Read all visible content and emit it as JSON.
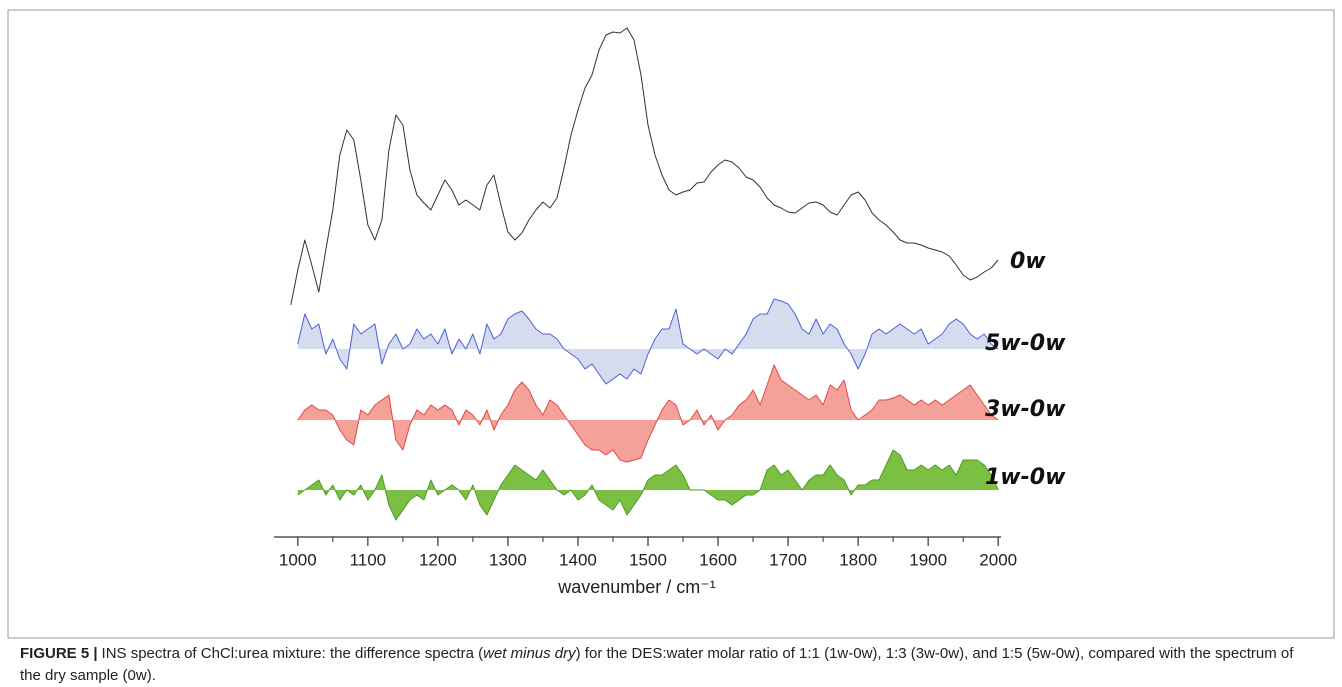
{
  "chart_data": {
    "type": "area",
    "xlabel": "wavenumber / cm⁻¹",
    "xlim": [
      966,
      2004
    ],
    "xticks": [
      1000,
      1100,
      1200,
      1300,
      1400,
      1500,
      1600,
      1700,
      1800,
      1900,
      2000
    ],
    "xminorticks": [
      1050,
      1150,
      1250,
      1350,
      1450,
      1550,
      1650,
      1750,
      1850,
      1950
    ],
    "x": [
      990,
      1000,
      1010,
      1020,
      1030,
      1040,
      1050,
      1060,
      1070,
      1080,
      1090,
      1100,
      1110,
      1120,
      1130,
      1140,
      1150,
      1160,
      1170,
      1180,
      1190,
      1200,
      1210,
      1220,
      1230,
      1240,
      1250,
      1260,
      1270,
      1280,
      1290,
      1300,
      1310,
      1320,
      1330,
      1340,
      1350,
      1360,
      1370,
      1380,
      1390,
      1400,
      1410,
      1420,
      1430,
      1440,
      1450,
      1460,
      1470,
      1480,
      1490,
      1500,
      1510,
      1520,
      1530,
      1540,
      1550,
      1560,
      1570,
      1580,
      1590,
      1600,
      1610,
      1620,
      1630,
      1640,
      1650,
      1660,
      1670,
      1680,
      1690,
      1700,
      1710,
      1720,
      1730,
      1740,
      1750,
      1760,
      1770,
      1780,
      1790,
      1800,
      1810,
      1820,
      1830,
      1840,
      1850,
      1860,
      1870,
      1880,
      1890,
      1900,
      1910,
      1920,
      1930,
      1940,
      1950,
      1960,
      1970,
      1980,
      1990,
      2000
    ],
    "series": [
      {
        "name": "0w",
        "color": "#333333",
        "values": [
          35,
          70,
          100,
          75,
          48,
          90,
          130,
          185,
          210,
          200,
          160,
          115,
          100,
          120,
          190,
          225,
          215,
          170,
          145,
          137,
          130,
          145,
          160,
          150,
          135,
          140,
          135,
          130,
          155,
          165,
          135,
          108,
          100,
          107,
          120,
          130,
          138,
          132,
          142,
          172,
          205,
          230,
          252,
          265,
          290,
          305,
          308,
          307,
          312,
          300,
          265,
          215,
          185,
          165,
          150,
          145,
          148,
          150,
          157,
          158,
          168,
          175,
          180,
          178,
          172,
          163,
          160,
          153,
          142,
          135,
          132,
          128,
          127,
          132,
          137,
          138,
          135,
          128,
          125,
          135,
          145,
          148,
          140,
          127,
          120,
          115,
          108,
          100,
          97,
          97,
          95,
          92,
          90,
          88,
          84,
          75,
          65,
          60,
          63,
          68,
          72,
          80
        ]
      },
      {
        "name": "5w-0w",
        "color": "#4d5fe0",
        "fill": "#d5dcee",
        "values": [
          null,
          5,
          35,
          20,
          25,
          -5,
          10,
          -10,
          -20,
          25,
          15,
          20,
          25,
          -15,
          5,
          15,
          0,
          5,
          20,
          10,
          15,
          5,
          20,
          -5,
          10,
          0,
          15,
          -5,
          25,
          10,
          15,
          30,
          35,
          38,
          30,
          20,
          15,
          15,
          10,
          0,
          -5,
          -10,
          -20,
          -15,
          -25,
          -35,
          -30,
          -25,
          -30,
          -20,
          -25,
          -5,
          10,
          20,
          20,
          40,
          5,
          0,
          -5,
          0,
          -5,
          -10,
          0,
          -5,
          5,
          15,
          30,
          35,
          35,
          50,
          48,
          45,
          35,
          20,
          15,
          30,
          15,
          25,
          20,
          5,
          -5,
          -20,
          -5,
          15,
          20,
          15,
          20,
          25,
          20,
          15,
          20,
          5,
          10,
          15,
          25,
          30,
          25,
          15,
          10,
          15,
          5,
          0
        ]
      },
      {
        "name": "3w-0w",
        "color": "#e04848",
        "fill": "#f4a19a",
        "values": [
          null,
          0,
          10,
          15,
          10,
          10,
          5,
          -10,
          -20,
          -25,
          10,
          5,
          15,
          20,
          25,
          -20,
          -30,
          -5,
          10,
          5,
          15,
          10,
          15,
          10,
          -5,
          10,
          5,
          -5,
          10,
          -10,
          5,
          15,
          30,
          38,
          30,
          15,
          5,
          20,
          15,
          5,
          -5,
          -15,
          -25,
          -30,
          -30,
          -35,
          -30,
          -40,
          -42,
          -40,
          -38,
          -20,
          -5,
          10,
          20,
          15,
          -5,
          0,
          10,
          -5,
          5,
          -10,
          0,
          5,
          15,
          20,
          30,
          15,
          35,
          55,
          40,
          35,
          30,
          25,
          20,
          25,
          15,
          35,
          30,
          40,
          10,
          0,
          5,
          10,
          20,
          20,
          22,
          25,
          20,
          15,
          20,
          15,
          20,
          15,
          20,
          25,
          30,
          35,
          25,
          15,
          5,
          0
        ]
      },
      {
        "name": "1w-0w",
        "color": "#4c9a20",
        "fill": "#7bc043",
        "values": [
          null,
          -5,
          0,
          5,
          10,
          -5,
          5,
          -10,
          0,
          -5,
          5,
          -10,
          0,
          15,
          -15,
          -30,
          -20,
          -10,
          -5,
          -10,
          10,
          -5,
          0,
          5,
          0,
          -10,
          5,
          -15,
          -25,
          -10,
          5,
          15,
          25,
          20,
          15,
          10,
          20,
          10,
          0,
          -5,
          0,
          -10,
          -5,
          5,
          -10,
          -15,
          -20,
          -10,
          -25,
          -15,
          -5,
          10,
          15,
          15,
          20,
          25,
          15,
          0,
          0,
          0,
          -5,
          -10,
          -10,
          -15,
          -10,
          -5,
          -5,
          0,
          20,
          25,
          15,
          20,
          10,
          0,
          10,
          15,
          15,
          25,
          15,
          10,
          -5,
          5,
          5,
          10,
          10,
          25,
          40,
          35,
          20,
          20,
          25,
          20,
          25,
          20,
          25,
          15,
          30,
          30,
          30,
          25,
          15,
          0
        ]
      }
    ]
  },
  "caption": {
    "label": "FIGURE 5 |",
    "text_before": "INS spectra of ChCl:urea mixture: the difference spectra (",
    "emphasis": "wet minus dry",
    "text_after": ") for the DES:water molar ratio of 1:1 (1w-0w), 1:3 (3w-0w), and 1:5 (5w-0w), compared with the spectrum of the dry sample (0w)."
  }
}
